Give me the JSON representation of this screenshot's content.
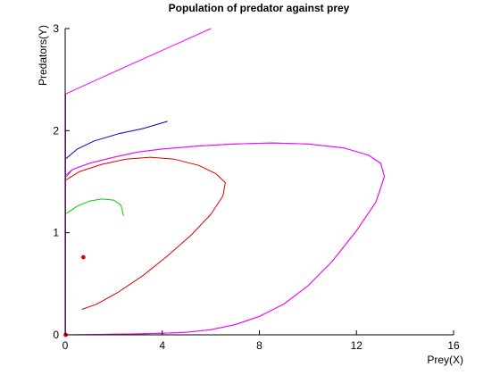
{
  "chart_data": {
    "type": "line",
    "title": "Population of predator against prey",
    "xlabel": "Prey(X)",
    "ylabel": "Predators(Y)",
    "xlim": [
      0,
      16
    ],
    "ylim": [
      0,
      3
    ],
    "xticks": [
      "0",
      "4",
      "8",
      "12",
      "16"
    ],
    "yticks": [
      "0",
      "1",
      "2",
      "3"
    ],
    "grid": false,
    "series": [
      {
        "color": "#ff00ff",
        "style": "line",
        "points": [
          [
            0.02,
            0.0
          ],
          [
            0.02,
            2.32
          ],
          [
            0.02,
            2.36
          ],
          [
            1.5,
            2.52
          ],
          [
            3.0,
            2.68
          ],
          [
            4.5,
            2.84
          ],
          [
            6.0,
            3.0
          ]
        ]
      },
      {
        "color": "#0000cc",
        "style": "line",
        "points": [
          [
            0.05,
            1.73
          ],
          [
            0.5,
            1.82
          ],
          [
            1.2,
            1.9
          ],
          [
            2.2,
            1.97
          ],
          [
            3.2,
            2.02
          ],
          [
            4.2,
            2.09
          ]
        ]
      },
      {
        "color": "#8a2be2",
        "style": "line",
        "points": [
          [
            0.02,
            0.0
          ],
          [
            1.0,
            0.003
          ],
          [
            2.0,
            0.006
          ],
          [
            3.0,
            0.01
          ],
          [
            4.0,
            0.015
          ],
          [
            5.0,
            0.025
          ],
          [
            6.0,
            0.05
          ],
          [
            7.0,
            0.1
          ],
          [
            8.0,
            0.18
          ],
          [
            9.0,
            0.3
          ],
          [
            10.0,
            0.48
          ],
          [
            11.0,
            0.72
          ],
          [
            12.0,
            1.02
          ],
          [
            12.8,
            1.3
          ],
          [
            13.15,
            1.55
          ],
          [
            13.0,
            1.68
          ],
          [
            12.5,
            1.76
          ],
          [
            11.5,
            1.83
          ],
          [
            10.0,
            1.87
          ],
          [
            8.5,
            1.88
          ],
          [
            7.0,
            1.87
          ],
          [
            5.5,
            1.85
          ],
          [
            4.0,
            1.82
          ],
          [
            3.0,
            1.79
          ],
          [
            2.0,
            1.74
          ],
          [
            1.0,
            1.68
          ],
          [
            0.3,
            1.62
          ],
          [
            0.05,
            1.55
          ]
        ]
      },
      {
        "color": "#ff00ff",
        "style": "line",
        "points": [
          [
            0.02,
            0.0
          ],
          [
            1.0,
            0.003
          ],
          [
            2.0,
            0.006
          ],
          [
            3.0,
            0.01
          ],
          [
            4.0,
            0.015
          ],
          [
            5.0,
            0.025
          ],
          [
            6.0,
            0.05
          ],
          [
            7.0,
            0.1
          ],
          [
            8.0,
            0.18
          ],
          [
            9.0,
            0.3
          ],
          [
            10.0,
            0.48
          ],
          [
            11.0,
            0.72
          ],
          [
            12.0,
            1.02
          ],
          [
            12.8,
            1.3
          ],
          [
            13.15,
            1.55
          ],
          [
            13.0,
            1.68
          ],
          [
            12.5,
            1.76
          ],
          [
            11.5,
            1.83
          ],
          [
            10.0,
            1.87
          ],
          [
            8.5,
            1.88
          ],
          [
            7.0,
            1.87
          ],
          [
            5.5,
            1.85
          ],
          [
            4.0,
            1.82
          ],
          [
            3.0,
            1.79
          ],
          [
            2.0,
            1.74
          ],
          [
            1.0,
            1.68
          ],
          [
            0.3,
            1.62
          ],
          [
            0.05,
            1.57
          ]
        ]
      },
      {
        "color": "#dd0000",
        "style": "line",
        "points": [
          [
            0.05,
            1.52
          ],
          [
            0.6,
            1.6
          ],
          [
            1.5,
            1.67
          ],
          [
            2.5,
            1.72
          ],
          [
            3.5,
            1.74
          ],
          [
            4.5,
            1.72
          ],
          [
            5.5,
            1.66
          ],
          [
            6.2,
            1.58
          ],
          [
            6.6,
            1.49
          ],
          [
            6.5,
            1.36
          ],
          [
            6.0,
            1.18
          ],
          [
            5.2,
            0.98
          ],
          [
            4.2,
            0.77
          ],
          [
            3.2,
            0.58
          ],
          [
            2.2,
            0.42
          ],
          [
            1.3,
            0.3
          ],
          [
            0.7,
            0.25
          ]
        ]
      },
      {
        "color": "#00cc00",
        "style": "line",
        "points": [
          [
            0.05,
            1.19
          ],
          [
            0.5,
            1.26
          ],
          [
            1.0,
            1.31
          ],
          [
            1.5,
            1.33
          ],
          [
            2.0,
            1.32
          ],
          [
            2.3,
            1.27
          ],
          [
            2.4,
            1.17
          ]
        ]
      },
      {
        "color": "#ee0000",
        "style": "markers",
        "points": [
          [
            0.75,
            0.76
          ],
          [
            0.02,
            0.0
          ]
        ]
      }
    ]
  }
}
